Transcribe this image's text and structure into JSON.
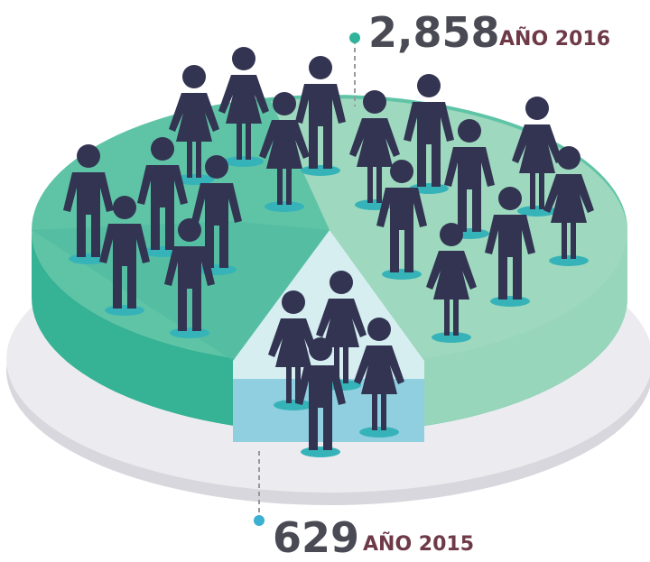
{
  "callouts": [
    {
      "number": "2,858",
      "label": "AÑO 2016"
    },
    {
      "number": "629",
      "label": "AÑO 2015"
    }
  ]
}
